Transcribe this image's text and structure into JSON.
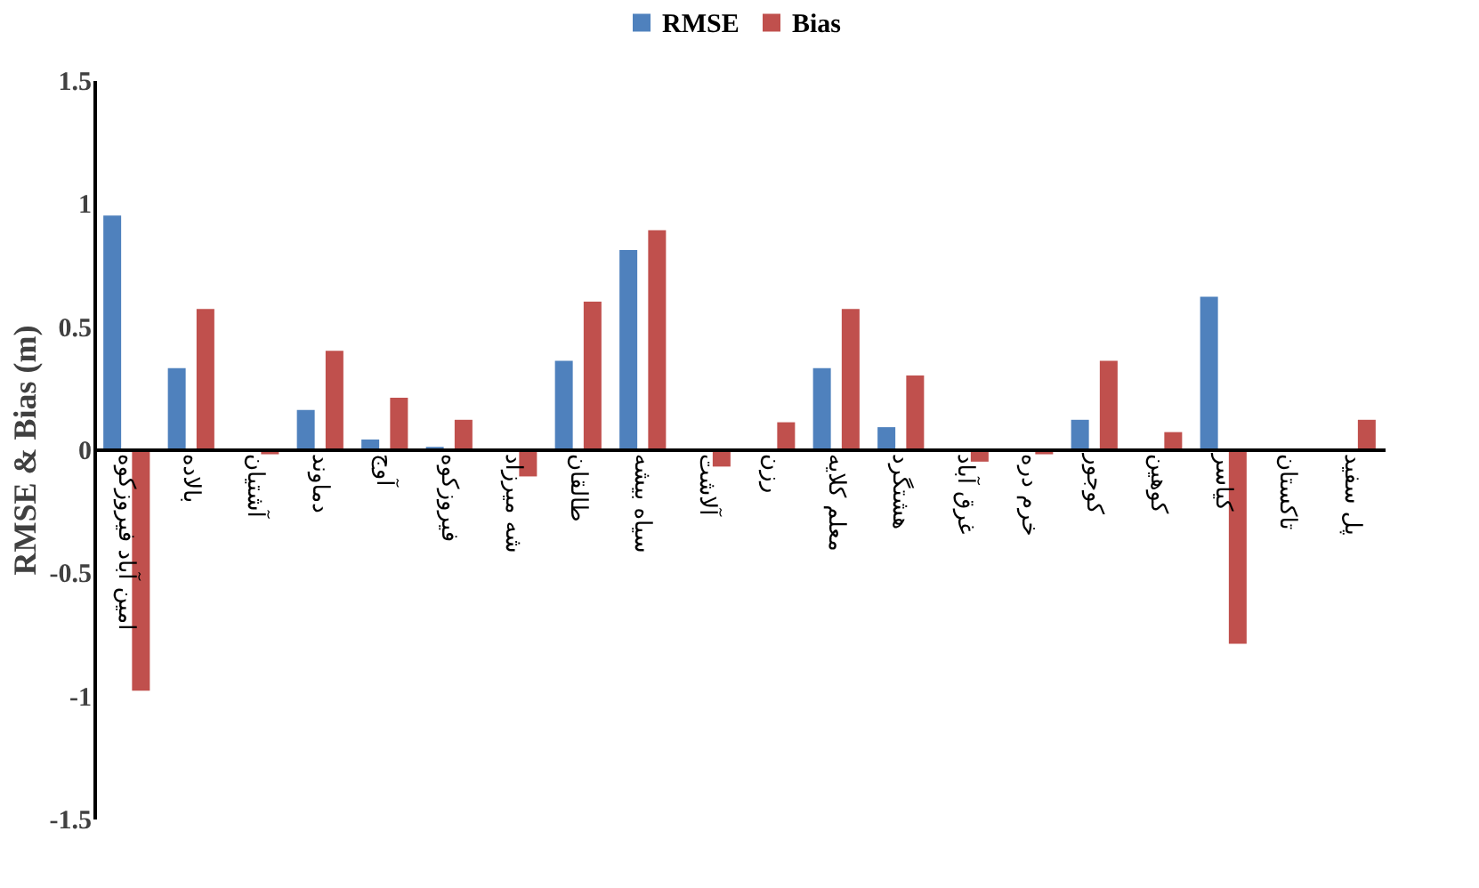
{
  "chart_data": {
    "type": "bar",
    "ylabel": "RMSE & Bias (m)",
    "categories": [
      "امین آباد فیروزکوه",
      "بالاده",
      "آشتیان",
      "دماوند",
      "آوج",
      "فیروزکوه",
      "شه میرزاد",
      "طالقان",
      "سیاه بیشه",
      "آلاشت",
      "رزن",
      "معلم کلایه",
      "هشتگرد",
      "غرق آباد",
      "خرم دره",
      "کوجور",
      "کوهین",
      "کیاسر",
      "تاکستان",
      "پل سفید"
    ],
    "series": [
      {
        "name": "RMSE",
        "color": "#4f81bd",
        "values": [
          0.95,
          0.33,
          0,
          0.16,
          0.04,
          0.01,
          0,
          0.36,
          0.81,
          0,
          0,
          0.33,
          0.09,
          0,
          0,
          0.12,
          0,
          0.62,
          0,
          0
        ]
      },
      {
        "name": "Bias",
        "color": "#c0504d",
        "values": [
          -0.98,
          0.57,
          -0.02,
          0.4,
          0.21,
          0.12,
          -0.11,
          0.6,
          0.89,
          -0.07,
          0.11,
          0.57,
          0.3,
          -0.05,
          -0.02,
          0.36,
          0.07,
          -0.79,
          0,
          0.12
        ]
      }
    ],
    "ylim": [
      -1.5,
      1.5
    ],
    "yticks": [
      -1.5,
      -1,
      -0.5,
      0,
      0.5,
      1,
      1.5
    ],
    "grid": false,
    "legend": "top"
  }
}
